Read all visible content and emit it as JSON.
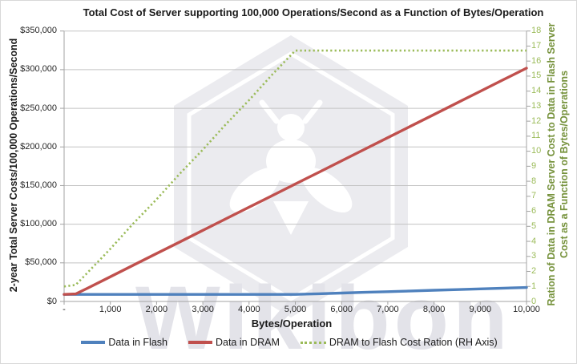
{
  "title": "Total Cost of Server supporting 100,000 Operations/Second as a Function of Bytes/Operation",
  "watermark": {
    "text": "Wikibon"
  },
  "axes": {
    "left": {
      "label": "2-year Total Server Costs/100,000 Operations/Second",
      "gridline_step": 50000,
      "ticks": [
        {
          "value": 0,
          "label": "$0"
        },
        {
          "value": 50000,
          "label": "$50,000"
        },
        {
          "value": 100000,
          "label": "$100,000"
        },
        {
          "value": 150000,
          "label": "$150,000"
        },
        {
          "value": 200000,
          "label": "$200,000"
        },
        {
          "value": 250000,
          "label": "$250,000"
        },
        {
          "value": 300000,
          "label": "$300,000"
        },
        {
          "value": 350000,
          "label": "$350,000"
        }
      ]
    },
    "right": {
      "label_line1": "Ration of Data in DRAM Server Cost to Data in Flash Server",
      "label_line2": "Cost as a Function of Bytes/Operations",
      "tick_labels": [
        "0",
        "1",
        "2",
        "3",
        "4",
        "5",
        "6",
        "7",
        "8",
        "9",
        "10",
        "11",
        "12",
        "13",
        "14",
        "15",
        "16",
        "17",
        "18"
      ]
    },
    "x": {
      "label": "Bytes/Operation",
      "tick_values": [
        0,
        1000,
        2000,
        3000,
        4000,
        5000,
        6000,
        7000,
        8000,
        9000,
        10000
      ],
      "tick_labels": [
        "-",
        "1,000",
        "2,000",
        "3,000",
        "4,000",
        "5,000",
        "6,000",
        "7,000",
        "8,000",
        "9,000",
        "10,000"
      ]
    }
  },
  "legend": [
    {
      "label": "Data in Flash"
    },
    {
      "label": "Data in DRAM"
    },
    {
      "label": "DRAM to Flash Cost Ration (RH Axis)"
    }
  ],
  "colors": {
    "flash_line": "#4F81BD",
    "dram_line": "#C0504D",
    "ratio_line": "#9BBB59",
    "right_axis_label": "#76923C",
    "right_axis_ticks": "#9BBB59",
    "gridline": "#C3C3C3",
    "watermark_gray": "#EBEBEF"
  },
  "chart_data": {
    "type": "line",
    "title": "Total Cost of Server supporting 100,000 Operations/Second as a Function of Bytes/Operation",
    "xlabel": "Bytes/Operation",
    "ylabel_left": "2-year Total Server Costs/100,000 Operations/Second",
    "ylabel_right": "Ration of Data in DRAM Server Cost to Data in Flash Server Cost as a Function of Bytes/Operations",
    "grid": "horizontal",
    "legend_position": "bottom",
    "xlim": [
      0,
      10000
    ],
    "ylim_left": [
      0,
      350000
    ],
    "ylim_right": [
      0,
      18
    ],
    "x": [
      0,
      250,
      500,
      1000,
      1500,
      2000,
      2500,
      3000,
      3500,
      4000,
      4500,
      5000,
      5500,
      6000,
      6500,
      7000,
      7500,
      8000,
      8500,
      9000,
      9500,
      10000
    ],
    "series": [
      {
        "name": "Data in Flash",
        "axis": "left",
        "color": "#4F81BD",
        "style": "solid",
        "values": [
          9100,
          9100,
          9100,
          9100,
          9100,
          9100,
          9100,
          9100,
          9100,
          9100,
          9100,
          9100,
          10000,
          10900,
          11800,
          12700,
          13600,
          14500,
          15400,
          16300,
          17200,
          18100
        ]
      },
      {
        "name": "Data in DRAM",
        "axis": "left",
        "color": "#C0504D",
        "style": "solid",
        "values": [
          9100,
          9800,
          17000,
          32000,
          47000,
          62000,
          77000,
          92000,
          107000,
          122000,
          137000,
          152000,
          167000,
          182000,
          197000,
          212000,
          227000,
          242000,
          257000,
          272000,
          287000,
          302000
        ]
      },
      {
        "name": "DRAM to Flash Cost Ration (RH Axis)",
        "axis": "right",
        "color": "#9BBB59",
        "style": "dotted",
        "values": [
          1.0,
          1.1,
          1.9,
          3.5,
          5.2,
          6.8,
          8.5,
          10.1,
          11.8,
          13.4,
          15.1,
          16.7,
          16.7,
          16.7,
          16.7,
          16.7,
          16.7,
          16.7,
          16.7,
          16.7,
          16.7,
          16.7
        ]
      }
    ]
  }
}
